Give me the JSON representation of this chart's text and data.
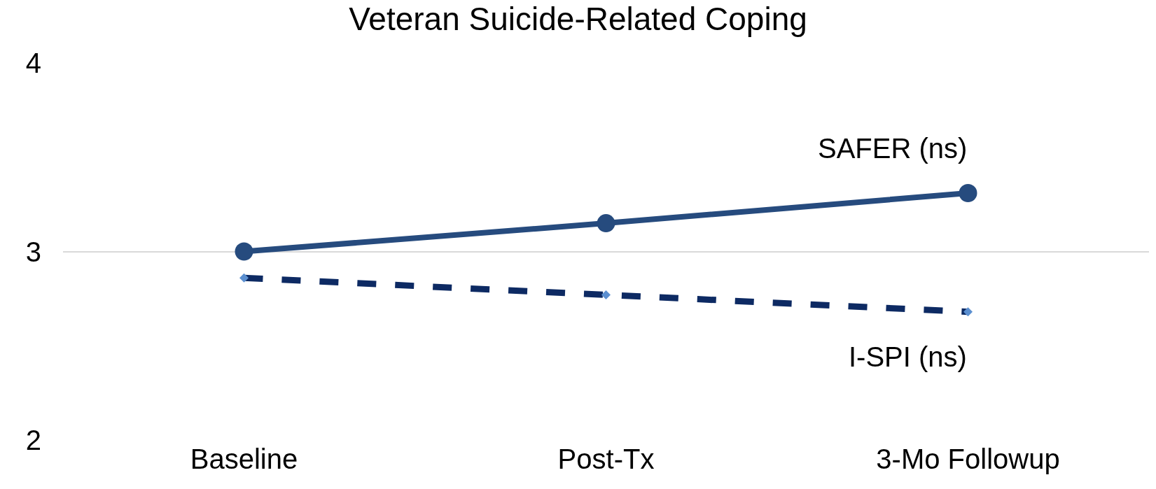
{
  "chart_data": {
    "type": "line",
    "title": "Veteran Suicide-Related Coping",
    "categories": [
      "Baseline",
      "Post-Tx",
      "3-Mo Followup"
    ],
    "series": [
      {
        "name": "SAFER (ns)",
        "color": "#264b7e",
        "values": [
          3.0,
          3.15,
          3.31
        ],
        "marker": "circle",
        "line_style": "solid"
      },
      {
        "name": "I-SPI (ns)",
        "color": "#0d2a63",
        "values": [
          2.86,
          2.77,
          2.68
        ],
        "marker": "diamond",
        "line_style": "dashed"
      }
    ],
    "ylim": [
      2,
      4
    ],
    "yticks": [
      2,
      3,
      4
    ],
    "grid": "y",
    "legend": false
  }
}
